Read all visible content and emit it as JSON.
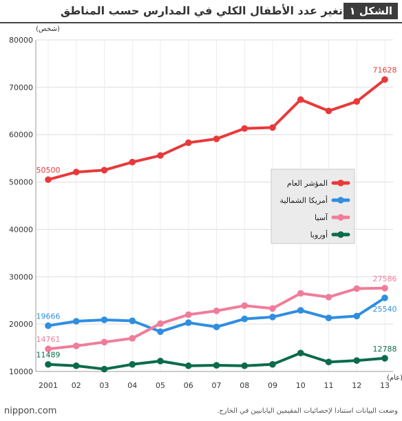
{
  "header": {
    "figure_label": "الشكل ١",
    "title": "تغير عدد الأطفال الكلي في المدارس حسب المناطق"
  },
  "chart_data": {
    "type": "line",
    "title": "تغير عدد الأطفال الكلي في المدارس حسب المناطق",
    "ylabel": "(شخص)",
    "xlabel": "(عام)",
    "ylim": [
      10000,
      80000
    ],
    "y_ticks": [
      "80000",
      "70000",
      "60000",
      "50000",
      "40000",
      "30000",
      "20000",
      "10000"
    ],
    "y_tick_values": [
      80000,
      70000,
      60000,
      50000,
      40000,
      30000,
      20000,
      10000
    ],
    "categories": [
      "2001",
      "02",
      "03",
      "04",
      "05",
      "06",
      "07",
      "08",
      "09",
      "10",
      "11",
      "12",
      "13"
    ],
    "grid": true,
    "legend_position": "right-middle",
    "series": [
      {
        "name": "المؤشر العام",
        "color": "#e8393a",
        "values": [
          50500,
          52100,
          52500,
          54200,
          55600,
          58300,
          59100,
          61300,
          61500,
          67400,
          65000,
          67000,
          71628
        ],
        "labels": {
          "0": "50500",
          "12": "71628"
        }
      },
      {
        "name": "أمريكا الشمالية",
        "color": "#2f8ee0",
        "values": [
          19666,
          20600,
          20900,
          20700,
          18400,
          20300,
          19400,
          21100,
          21500,
          22900,
          21300,
          21700,
          25540
        ],
        "labels": {
          "0": "19666",
          "12": "25540"
        }
      },
      {
        "name": "آسيا",
        "color": "#f07c9a",
        "values": [
          14761,
          15400,
          16200,
          17000,
          20100,
          22000,
          22800,
          23900,
          23300,
          26500,
          25700,
          27500,
          27586
        ],
        "labels": {
          "0": "14761",
          "12": "27586"
        }
      },
      {
        "name": "أوروبا",
        "color": "#0b6b4a",
        "values": [
          11489,
          11200,
          10500,
          11500,
          12200,
          11200,
          11300,
          11200,
          11500,
          13900,
          12000,
          12300,
          12788
        ],
        "labels": {
          "0": "11489",
          "12": "12788"
        }
      }
    ]
  },
  "footer": {
    "brand": "nippon.com",
    "source": "وضعت البيانات استنادا لإحصائيات المقيمين اليابانيين في الخارج."
  }
}
